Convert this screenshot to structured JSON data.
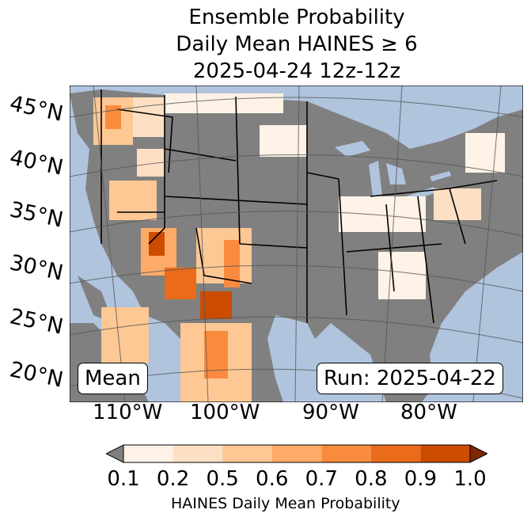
{
  "title": {
    "line1": "Ensemble Probability",
    "line2": "Daily Mean HAINES ≥ 6",
    "line3": "2025-04-24 12z-12z"
  },
  "latitude_labels": [
    "45°N",
    "40°N",
    "35°N",
    "30°N",
    "25°N",
    "20°N"
  ],
  "longitude_labels": [
    "110°W",
    "100°W",
    "90°W",
    "80°W"
  ],
  "badges": {
    "left": "Mean",
    "right": "Run: 2025-04-22"
  },
  "colorbar": {
    "ticks": [
      "0.1",
      "0.2",
      "0.5",
      "0.6",
      "0.7",
      "0.8",
      "0.9",
      "1.0"
    ],
    "colors": [
      "#fff2e6",
      "#fde0c4",
      "#fdc894",
      "#fdab67",
      "#f88b3e",
      "#ea6b1a",
      "#cc4c02",
      "#7f2704"
    ],
    "under_color": "#808080",
    "label": "HAINES Daily Mean Probability"
  },
  "map_colors": {
    "ocean": "#b0c4de",
    "land_below_threshold": "#808080",
    "border": "#000000",
    "graticule": "#555555"
  }
}
